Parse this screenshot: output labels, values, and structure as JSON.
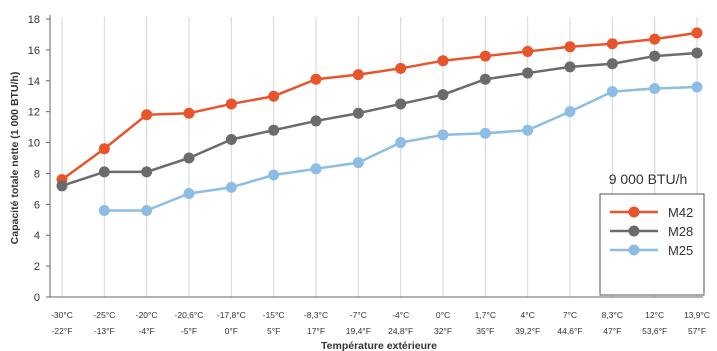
{
  "chart_data": {
    "type": "line",
    "title": "",
    "ylabel": "Capacité totale nette (1 000 BTU/h)",
    "xlabel": "Température extérieure",
    "ylim": [
      0,
      18
    ],
    "yticks": [
      0,
      2,
      4,
      6,
      8,
      10,
      12,
      14,
      16,
      18
    ],
    "grid": "vertical",
    "legend_position": "right",
    "categories": [
      {
        "c": "-30°C",
        "f": "-22°F"
      },
      {
        "c": "-25°C",
        "f": "-13°F"
      },
      {
        "c": "-20°C",
        "f": "-4°F"
      },
      {
        "c": "-20,6°C",
        "f": "-5°F"
      },
      {
        "c": "-17,8°C",
        "f": "0°F"
      },
      {
        "c": "-15°C",
        "f": "5°F"
      },
      {
        "c": "-8,3°C",
        "f": "17°F"
      },
      {
        "c": "-7°C",
        "f": "19,4°F"
      },
      {
        "c": "-4°C",
        "f": "24,8°F"
      },
      {
        "c": "0°C",
        "f": "32°F"
      },
      {
        "c": "1,7°C",
        "f": "35°F"
      },
      {
        "c": "4°C",
        "f": "39,2°F"
      },
      {
        "c": "7°C",
        "f": "44,6°F"
      },
      {
        "c": "8,3°C",
        "f": "47°F"
      },
      {
        "c": "12°C",
        "f": "53,6°F"
      },
      {
        "c": "13,9°C",
        "f": "57°F"
      }
    ],
    "legend_title": "9 000 BTU/h",
    "series": [
      {
        "name": "M42",
        "color": "#e8552a",
        "values": [
          7.6,
          9.6,
          11.8,
          11.9,
          12.5,
          13.0,
          14.1,
          14.4,
          14.8,
          15.3,
          15.6,
          15.9,
          16.2,
          16.4,
          16.7,
          17.1
        ]
      },
      {
        "name": "M28",
        "color": "#6b6b6b",
        "values": [
          7.2,
          8.1,
          8.1,
          9.0,
          10.2,
          10.8,
          11.4,
          11.9,
          12.5,
          13.1,
          14.1,
          14.5,
          14.9,
          15.1,
          15.6,
          15.8
        ]
      },
      {
        "name": "M25",
        "color": "#8cbde3",
        "values": [
          null,
          5.6,
          5.6,
          6.7,
          7.1,
          7.9,
          8.3,
          8.7,
          10.0,
          10.5,
          10.6,
          10.8,
          12.0,
          13.3,
          13.5,
          13.6
        ]
      }
    ]
  }
}
